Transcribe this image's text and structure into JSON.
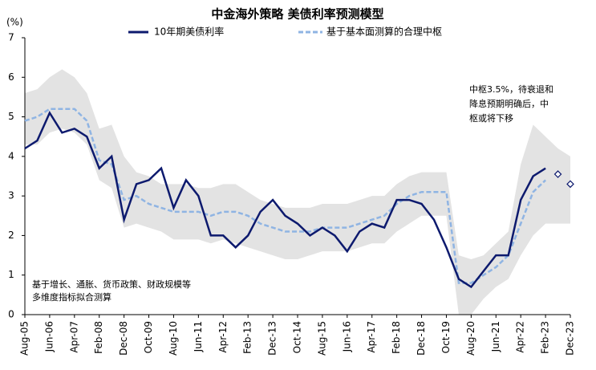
{
  "chart_data": {
    "type": "line",
    "title": "中金海外策略 美债利率预测模型",
    "y_unit_label": "(%)",
    "categories": [
      "Aug-05",
      null,
      "Jun-06",
      null,
      "Apr-07",
      null,
      "Feb-08",
      null,
      "Dec-08",
      null,
      "Oct-09",
      null,
      "Aug-10",
      null,
      "Jun-11",
      null,
      "Apr-12",
      null,
      "Feb-13",
      null,
      "Dec-13",
      null,
      "Oct-14",
      null,
      "Aug-15",
      null,
      "Jun-16",
      null,
      "Apr-17",
      null,
      "Feb-18",
      null,
      "Dec-18",
      null,
      "Oct-19",
      null,
      "Aug-20",
      null,
      "Jun-21",
      null,
      "Apr-22",
      null,
      "Feb-23",
      null,
      "Dec-23"
    ],
    "series": [
      {
        "name": "10年期美债利率",
        "color": "#0d1a6e",
        "style": "solid",
        "values": [
          4.2,
          4.4,
          5.1,
          4.6,
          4.7,
          4.5,
          3.7,
          4.0,
          2.4,
          3.3,
          3.4,
          3.7,
          2.7,
          3.4,
          3.0,
          2.0,
          2.0,
          1.7,
          2.0,
          2.6,
          2.9,
          2.5,
          2.3,
          2.0,
          2.2,
          2.0,
          1.6,
          2.1,
          2.3,
          2.2,
          2.9,
          2.9,
          2.8,
          2.4,
          1.7,
          0.9,
          0.7,
          1.1,
          1.5,
          1.5,
          2.9,
          3.5,
          3.7,
          null,
          null
        ]
      },
      {
        "name": "基于基本面测算的合理中枢",
        "color": "#8fb4e3",
        "style": "dashed",
        "values": [
          4.9,
          5.0,
          5.2,
          5.2,
          5.2,
          4.9,
          3.9,
          3.8,
          2.9,
          3.0,
          2.8,
          2.7,
          2.6,
          2.6,
          2.6,
          2.5,
          2.6,
          2.6,
          2.5,
          2.3,
          2.2,
          2.1,
          2.1,
          2.1,
          2.2,
          2.2,
          2.2,
          2.3,
          2.4,
          2.5,
          2.8,
          3.0,
          3.1,
          3.1,
          3.1,
          0.8,
          0.8,
          1.0,
          1.2,
          1.5,
          2.3,
          3.1,
          3.4,
          null,
          null
        ]
      }
    ],
    "band": {
      "color": "#e3e3e3",
      "upper": [
        5.6,
        5.7,
        6.0,
        6.2,
        6.0,
        5.6,
        4.7,
        4.8,
        4.0,
        3.6,
        3.5,
        3.3,
        3.3,
        3.3,
        3.2,
        3.2,
        3.3,
        3.3,
        3.1,
        2.9,
        2.8,
        2.7,
        2.7,
        2.7,
        2.8,
        2.8,
        2.8,
        2.9,
        3.0,
        3.0,
        3.3,
        3.5,
        3.6,
        3.6,
        3.6,
        1.5,
        1.4,
        1.5,
        1.8,
        2.1,
        3.8,
        4.8,
        4.5,
        4.2,
        4.0
      ],
      "lower": [
        4.3,
        4.3,
        4.6,
        4.7,
        4.6,
        4.3,
        3.4,
        3.2,
        2.2,
        2.3,
        2.2,
        2.1,
        1.9,
        1.9,
        1.9,
        1.8,
        1.9,
        1.8,
        1.7,
        1.6,
        1.5,
        1.4,
        1.4,
        1.5,
        1.6,
        1.6,
        1.6,
        1.7,
        1.8,
        1.8,
        2.1,
        2.3,
        2.5,
        2.5,
        2.5,
        0.0,
        0.0,
        0.4,
        0.7,
        0.9,
        1.5,
        2.0,
        2.3,
        2.3,
        2.3
      ]
    },
    "projection": {
      "color": "#0d1a6e",
      "values": [
        null,
        null,
        null,
        null,
        null,
        null,
        null,
        null,
        null,
        null,
        null,
        null,
        null,
        null,
        null,
        null,
        null,
        null,
        null,
        null,
        null,
        null,
        null,
        null,
        null,
        null,
        null,
        null,
        null,
        null,
        null,
        null,
        null,
        null,
        null,
        null,
        null,
        null,
        null,
        null,
        null,
        null,
        null,
        3.55,
        3.3
      ]
    },
    "annotations": [
      {
        "lines": [
          "中枢3.5%，待衰退和",
          "降息预期明确后，中",
          "枢或将下移"
        ]
      },
      {
        "lines": [
          "基于增长、通胀、货币政策、财政规模等",
          "多维度指标拟合测算"
        ]
      }
    ],
    "ylim": [
      0,
      7
    ],
    "yticks": [
      0,
      1,
      2,
      3,
      4,
      5,
      6,
      7
    ],
    "grid": false
  }
}
